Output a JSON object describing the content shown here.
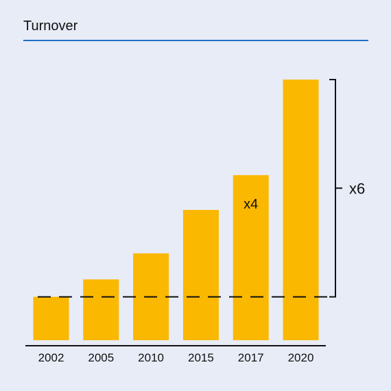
{
  "chart_data": {
    "type": "bar",
    "title": "Turnover",
    "categories": [
      "2002",
      "2005",
      "2010",
      "2015",
      "2017",
      "2020"
    ],
    "values": [
      1.0,
      1.4,
      2.0,
      3.0,
      3.8,
      6.0
    ],
    "ylim": [
      0,
      6
    ],
    "xlabel": "",
    "ylabel": "",
    "grid": false,
    "annotations": [
      {
        "text": "x4",
        "category": "2017"
      },
      {
        "text": "x6",
        "category": "2020",
        "type": "bracket"
      }
    ],
    "reference_line": {
      "value": 1.0,
      "style": "dashed"
    }
  },
  "colors": {
    "background": "#e8ecf7",
    "bar": "#fbb800",
    "title_rule": "#1f6fc4",
    "axis": "#111111"
  }
}
